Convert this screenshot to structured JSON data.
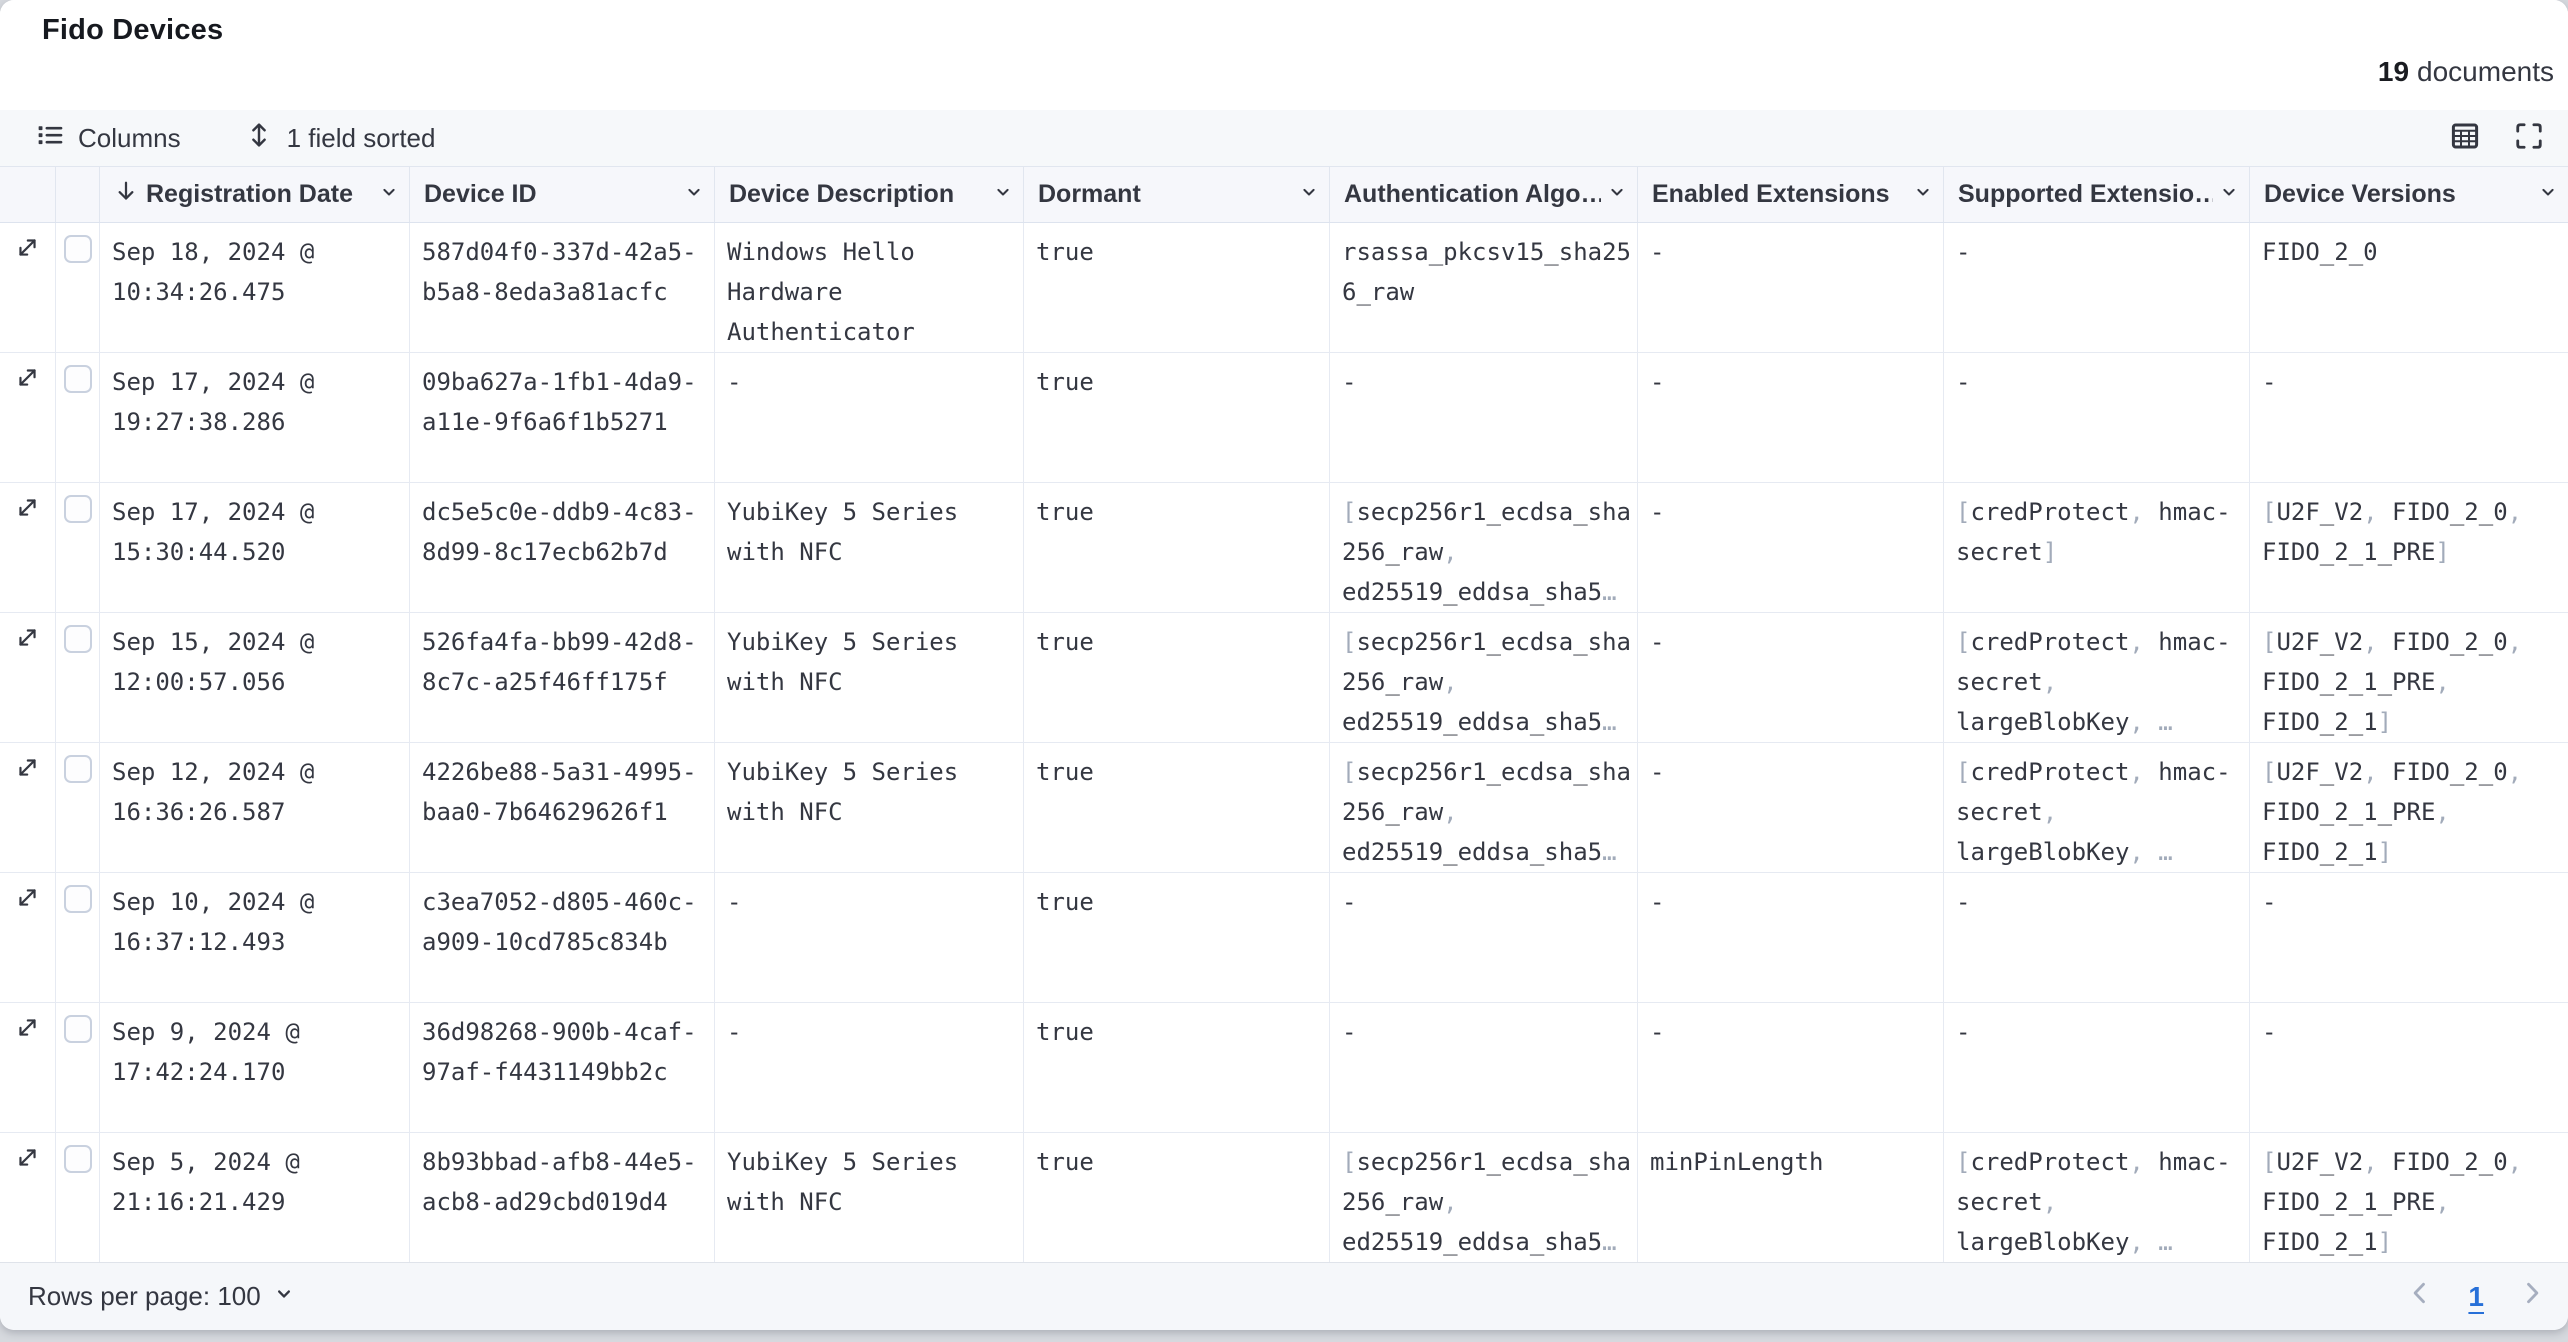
{
  "panel": {
    "title": "Fido Devices"
  },
  "status": {
    "count": "19",
    "count_label": "documents"
  },
  "toolbar": {
    "columns_label": "Columns",
    "sorted_label": "1 field sorted"
  },
  "grid": {
    "columns": [
      {
        "key": "registration-date",
        "label": "Registration Date",
        "sorted": "desc"
      },
      {
        "key": "device-id",
        "label": "Device ID"
      },
      {
        "key": "device-description",
        "label": "Device Description"
      },
      {
        "key": "dormant",
        "label": "Dormant"
      },
      {
        "key": "authentication-algorithms",
        "label": "Authentication Algo…"
      },
      {
        "key": "enabled-extensions",
        "label": "Enabled Extensions"
      },
      {
        "key": "supported-extensions",
        "label": "Supported Extensio…"
      },
      {
        "key": "device-versions",
        "label": "Device Versions"
      }
    ],
    "rows": [
      {
        "cells": [
          "Sep 18, 2024 @ 10:34:26.475",
          "587d04f0-337d-42a5-b5a8-8eda3a81acfc",
          "Windows Hello Hardware Authenticator",
          "true",
          "rsassa_pkcsv15_sha256_raw",
          "-",
          "-",
          "FIDO_2_0"
        ]
      },
      {
        "cells": [
          "Sep 17, 2024 @ 19:27:38.286",
          "09ba627a-1fb1-4da9-a11e-9f6a6f1b5271",
          "-",
          "true",
          "-",
          "-",
          "-",
          "-"
        ]
      },
      {
        "cells": [
          "Sep 17, 2024 @ 15:30:44.520",
          "dc5e5c0e-ddb9-4c83-8d99-8c17ecb62b7d",
          "YubiKey 5 Series with NFC",
          "true",
          "[secp256r1_ecdsa_sha256_raw, ed25519_eddsa_sha5…",
          "-",
          "[credProtect, hmac-secret]",
          "[U2F_V2, FIDO_2_0, FIDO_2_1_PRE]"
        ]
      },
      {
        "cells": [
          "Sep 15, 2024 @ 12:00:57.056",
          "526fa4fa-bb99-42d8-8c7c-a25f46ff175f",
          "YubiKey 5 Series with NFC",
          "true",
          "[secp256r1_ecdsa_sha256_raw, ed25519_eddsa_sha5…",
          "-",
          "[credProtect, hmac-secret, largeBlobKey, …",
          "[U2F_V2, FIDO_2_0, FIDO_2_1_PRE, FIDO_2_1]"
        ]
      },
      {
        "cells": [
          "Sep 12, 2024 @ 16:36:26.587",
          "4226be88-5a31-4995-baa0-7b64629626f1",
          "YubiKey 5 Series with NFC",
          "true",
          "[secp256r1_ecdsa_sha256_raw, ed25519_eddsa_sha5…",
          "-",
          "[credProtect, hmac-secret, largeBlobKey, …",
          "[U2F_V2, FIDO_2_0, FIDO_2_1_PRE, FIDO_2_1]"
        ]
      },
      {
        "cells": [
          "Sep 10, 2024 @ 16:37:12.493",
          "c3ea7052-d805-460c-a909-10cd785c834b",
          "-",
          "true",
          "-",
          "-",
          "-",
          "-"
        ]
      },
      {
        "cells": [
          "Sep 9, 2024 @ 17:42:24.170",
          "36d98268-900b-4caf-97af-f4431149bb2c",
          "-",
          "true",
          "-",
          "-",
          "-",
          "-"
        ]
      },
      {
        "cells": [
          "Sep 5, 2024 @ 21:16:21.429",
          "8b93bbad-afb8-44e5-acb8-ad29cbd019d4",
          "YubiKey 5 Series with NFC",
          "true",
          "[secp256r1_ecdsa_sha256_raw, ed25519_eddsa_sha5…",
          "minPinLength",
          "[credProtect, hmac-secret, largeBlobKey, …",
          "[U2F_V2, FIDO_2_0, FIDO_2_1_PRE, FIDO_2_1]"
        ]
      }
    ]
  },
  "footer": {
    "rows_per_page_label": "Rows per page: 100",
    "page": "1"
  },
  "colors": {
    "text": "#343741",
    "punctuation": "#a2abba",
    "link_blue": "#2770d8",
    "border": "#e6eaf2",
    "header_bg": "#f6f7fb"
  }
}
